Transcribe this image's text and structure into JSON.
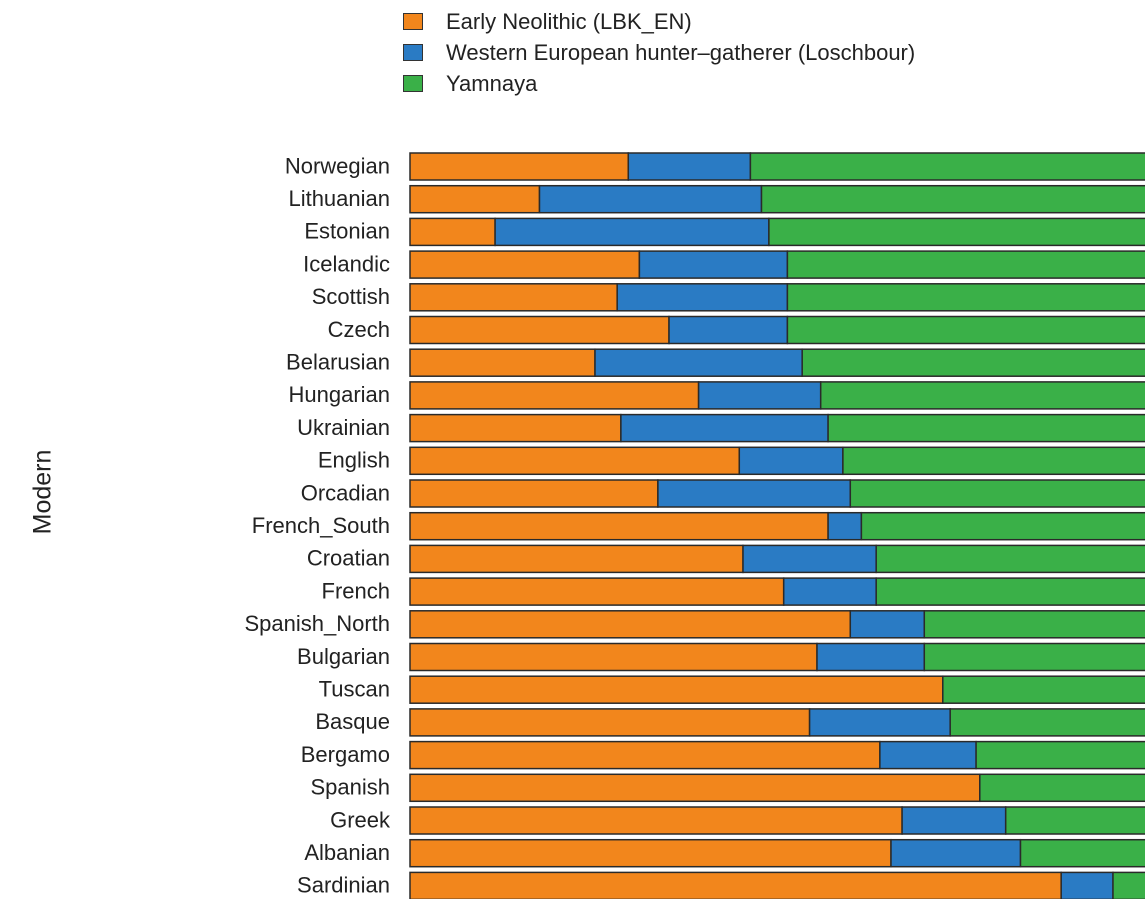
{
  "chart_data": {
    "type": "bar",
    "orientation": "horizontal",
    "stacked": true,
    "normalized": true,
    "ylabel": "Modern",
    "xlim": [
      0,
      1
    ],
    "legend_position": "top",
    "grid": false,
    "categories": [
      "Norwegian",
      "Lithuanian",
      "Estonian",
      "Icelandic",
      "Scottish",
      "Czech",
      "Belarusian",
      "Hungarian",
      "Ukrainian",
      "English",
      "Orcadian",
      "French_South",
      "Croatian",
      "French",
      "Spanish_North",
      "Bulgarian",
      "Tuscan",
      "Basque",
      "Bergamo",
      "Spanish",
      "Greek",
      "Albanian",
      "Sardinian"
    ],
    "series": [
      {
        "name": "Early Neolithic (LBK_EN)",
        "color": "#f2861c",
        "values": [
          0.295,
          0.175,
          0.115,
          0.31,
          0.28,
          0.35,
          0.25,
          0.39,
          0.285,
          0.445,
          0.335,
          0.565,
          0.45,
          0.505,
          0.595,
          0.55,
          0.72,
          0.54,
          0.635,
          0.77,
          0.665,
          0.65,
          0.88
        ]
      },
      {
        "name": "Western European hunter–gatherer (Loschbour)",
        "color": "#2a7bc4",
        "values": [
          0.165,
          0.3,
          0.37,
          0.2,
          0.23,
          0.16,
          0.28,
          0.165,
          0.28,
          0.14,
          0.26,
          0.045,
          0.18,
          0.125,
          0.1,
          0.145,
          0,
          0.19,
          0.13,
          0,
          0.14,
          0.175,
          0.07
        ]
      },
      {
        "name": "Yamnaya",
        "color": "#3ab048",
        "values": [
          0.54,
          0.525,
          0.515,
          0.49,
          0.49,
          0.49,
          0.47,
          0.445,
          0.435,
          0.415,
          0.405,
          0.39,
          0.37,
          0.37,
          0.305,
          0.305,
          0.28,
          0.27,
          0.235,
          0.23,
          0.195,
          0.175,
          0.05
        ]
      }
    ]
  }
}
